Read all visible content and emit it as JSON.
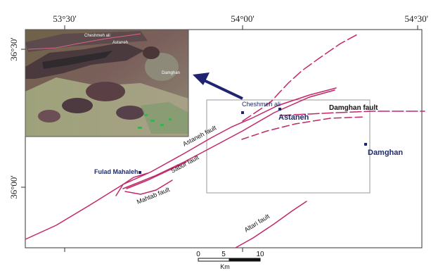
{
  "map": {
    "top_ticks": [
      "53°30'",
      "54°00'",
      "54°30'"
    ],
    "left_ticks": [
      "36°30'",
      "36°00'"
    ],
    "faults": [
      "Astaneh fault",
      "Damghan fault",
      "Sabur fault",
      "Mahtab fault",
      "Altari fault"
    ],
    "places": [
      "Cheshmeh ali",
      "Astaneh",
      "Damghan",
      "Fulad Mahaleh"
    ],
    "inset_labels": [
      "Cheshmeh ali",
      "Astaneh",
      "Damghan"
    ],
    "scale": {
      "ticks": [
        "0",
        "5",
        "10"
      ],
      "unit": "Km"
    },
    "colors": {
      "fault": "#c2276a",
      "arrow": "#1f2470",
      "place_text": "#1f2b6b",
      "study_box": "#9a9a9a",
      "frame": "#333333"
    }
  }
}
